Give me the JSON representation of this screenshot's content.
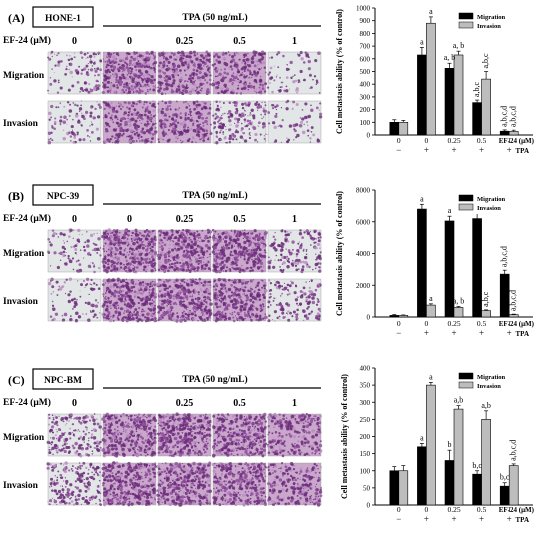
{
  "figure": {
    "panels": [
      {
        "letter": "(A)",
        "cell_line": "HONE-1",
        "tpa_label": "TPA (50 ng/mL)",
        "ef24_label": "EF-24 (μM)",
        "doses": [
          "0",
          "0",
          "0.25",
          "0.5",
          "1"
        ],
        "row_labels": [
          "Migration",
          "Invasion"
        ],
        "image_density": [
          [
            0.2,
            0.85,
            0.7,
            0.55,
            0.1
          ],
          [
            0.15,
            0.6,
            0.55,
            0.4,
            0.08
          ]
        ]
      },
      {
        "letter": "(B)",
        "cell_line": "NPC-39",
        "tpa_label": "TPA (50 ng/mL)",
        "ef24_label": "EF-24 (μM)",
        "doses": [
          "0",
          "0",
          "0.25",
          "0.5",
          "1"
        ],
        "row_labels": [
          "Migration",
          "Invasion"
        ],
        "image_density": [
          [
            0.15,
            1.0,
            0.95,
            0.9,
            0.35
          ],
          [
            0.12,
            0.95,
            0.9,
            0.85,
            0.3
          ]
        ]
      },
      {
        "letter": "(C)",
        "cell_line": "NPC-BM",
        "tpa_label": "TPA (50 ng/mL)",
        "ef24_label": "EF-24 (μM)",
        "doses": [
          "0",
          "0",
          "0.25",
          "0.5",
          "1"
        ],
        "row_labels": [
          "Migration",
          "Invasion"
        ],
        "image_density": [
          [
            0.4,
            1.0,
            0.95,
            0.9,
            0.55
          ],
          [
            0.45,
            1.0,
            0.95,
            0.9,
            0.55
          ]
        ]
      }
    ]
  },
  "chart_data": [
    {
      "type": "bar",
      "ylabel": "Cell metastasis ability (% of control)",
      "ylim": [
        0,
        1000
      ],
      "yticks": [
        0,
        100,
        200,
        300,
        400,
        500,
        600,
        700,
        800,
        900,
        1000
      ],
      "categories": [
        "0",
        "0",
        "0.25",
        "0.5",
        "1"
      ],
      "tpa": [
        "−",
        "+",
        "+",
        "+",
        "+"
      ],
      "ef24_axis_label": "EF-24 (μM)",
      "tpa_axis_label": "TPA",
      "legend": "top-right",
      "series": [
        {
          "name": "Migration",
          "color": "#000000",
          "values": [
            100,
            630,
            525,
            255,
            30
          ],
          "errors": [
            20,
            60,
            40,
            20,
            10
          ]
        },
        {
          "name": "Invasion",
          "color": "#bdbdbd",
          "values": [
            100,
            880,
            630,
            440,
            28
          ],
          "errors": [
            15,
            50,
            30,
            60,
            10
          ]
        }
      ],
      "annotations": [
        {
          "series": 0,
          "index": 1,
          "text": "a"
        },
        {
          "series": 0,
          "index": 2,
          "text": "a, b"
        },
        {
          "series": 0,
          "index": 3,
          "text": "a,b,c"
        },
        {
          "series": 0,
          "index": 4,
          "text": "a,b,c,d"
        },
        {
          "series": 1,
          "index": 1,
          "text": "a"
        },
        {
          "series": 1,
          "index": 2,
          "text": "a, b"
        },
        {
          "series": 1,
          "index": 3,
          "text": "a,b,c"
        },
        {
          "series": 1,
          "index": 4,
          "text": "a,b,c,d"
        }
      ]
    },
    {
      "type": "bar",
      "ylabel": "Cell metastasis ability (% of control)",
      "ylim": [
        0,
        8000
      ],
      "yticks": [
        0,
        2000,
        4000,
        6000,
        8000
      ],
      "categories": [
        "0",
        "0",
        "0.25",
        "0.5",
        "1"
      ],
      "tpa": [
        "−",
        "+",
        "+",
        "+",
        "+"
      ],
      "ef24_axis_label": "EF-24 (μM)",
      "tpa_axis_label": "TPA",
      "legend": "top-right",
      "series": [
        {
          "name": "Migration",
          "color": "#000000",
          "values": [
            100,
            6800,
            6050,
            6200,
            2700
          ],
          "errors": [
            50,
            300,
            300,
            400,
            250
          ]
        },
        {
          "name": "Invasion",
          "color": "#bdbdbd",
          "values": [
            100,
            750,
            600,
            400,
            150
          ],
          "errors": [
            30,
            80,
            60,
            50,
            30
          ]
        }
      ],
      "annotations": [
        {
          "series": 0,
          "index": 1,
          "text": "a"
        },
        {
          "series": 0,
          "index": 2,
          "text": "a"
        },
        {
          "series": 0,
          "index": 3,
          "text": "a"
        },
        {
          "series": 0,
          "index": 4,
          "text": "a,b,c,d"
        },
        {
          "series": 1,
          "index": 1,
          "text": "a"
        },
        {
          "series": 1,
          "index": 2,
          "text": "a, b"
        },
        {
          "series": 1,
          "index": 3,
          "text": "a,b,c"
        },
        {
          "series": 1,
          "index": 4,
          "text": "a,b,c,d"
        }
      ]
    },
    {
      "type": "bar",
      "ylabel": "Cell metastasis ability (% of control)",
      "ylim": [
        0,
        400
      ],
      "yticks": [
        0,
        50,
        100,
        150,
        200,
        250,
        300,
        350,
        400
      ],
      "categories": [
        "0",
        "0",
        "0.25",
        "0.5",
        "1"
      ],
      "tpa": [
        "−",
        "+",
        "+",
        "+",
        "+"
      ],
      "ef24_axis_label": "EF-24 (μM)",
      "tpa_axis_label": "TPA",
      "legend": "top-right",
      "series": [
        {
          "name": "Migration",
          "color": "#000000",
          "values": [
            100,
            170,
            130,
            90,
            55
          ],
          "errors": [
            12,
            10,
            30,
            10,
            10
          ]
        },
        {
          "name": "Invasion",
          "color": "#bdbdbd",
          "values": [
            100,
            350,
            280,
            250,
            115
          ],
          "errors": [
            15,
            8,
            10,
            25,
            5
          ]
        }
      ],
      "annotations": [
        {
          "series": 0,
          "index": 1,
          "text": "a"
        },
        {
          "series": 0,
          "index": 2,
          "text": "b"
        },
        {
          "series": 0,
          "index": 3,
          "text": "b,c"
        },
        {
          "series": 0,
          "index": 4,
          "text": "b,c"
        },
        {
          "series": 1,
          "index": 1,
          "text": "a"
        },
        {
          "series": 1,
          "index": 2,
          "text": "a,b"
        },
        {
          "series": 1,
          "index": 3,
          "text": "a,b"
        },
        {
          "series": 1,
          "index": 4,
          "text": "a,b,c,d"
        }
      ]
    }
  ]
}
